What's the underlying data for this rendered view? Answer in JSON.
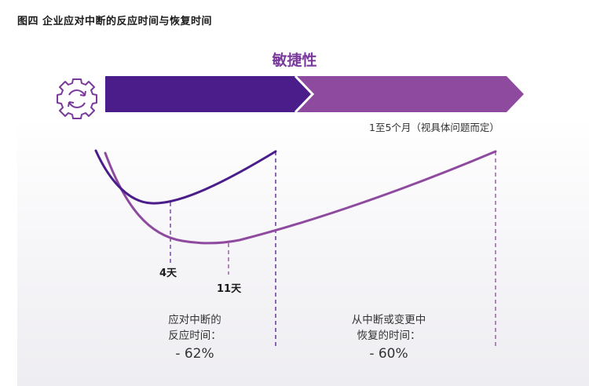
{
  "figure": {
    "title": "图四  企业应对中断的反应时间与恢复时间"
  },
  "banner": {
    "label": "敏捷性",
    "colors": {
      "dark": "#4a1d8a",
      "light": "#8e4a9f",
      "icon": "#7a3a9c"
    },
    "icon": "gear-refresh-icon"
  },
  "range_note": "1至5个月（视具体问题而定）",
  "curves": [
    {
      "id": "reaction",
      "color": "#4a1d8a"
    },
    {
      "id": "recovery",
      "color": "#8e4a9f"
    }
  ],
  "markers": {
    "reaction_min": "4天",
    "recovery_min": "11天"
  },
  "metrics": {
    "reaction": {
      "line1": "应对中断的",
      "line2": "反应时间：",
      "value": "- 62%"
    },
    "recovery": {
      "line1": "从中断或变更中",
      "line2": "恢复的时间：",
      "value": "- 60%"
    }
  }
}
